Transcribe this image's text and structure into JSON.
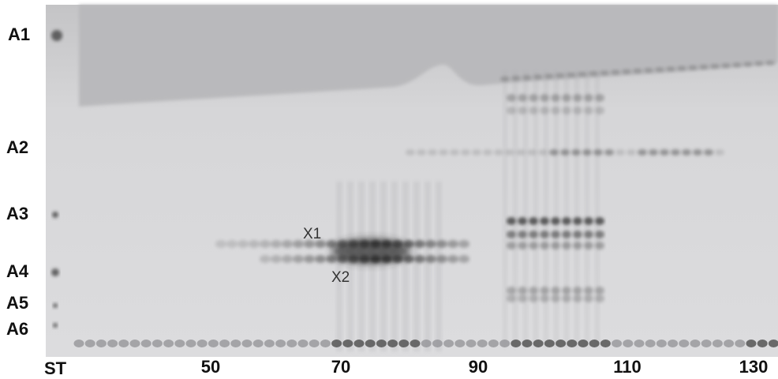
{
  "row_labels": [
    "A1",
    "A2",
    "A3",
    "A4",
    "A5",
    "A6"
  ],
  "lane_labels": [
    "ST",
    "50",
    "70",
    "90",
    "110",
    "130"
  ],
  "band_labels": [
    "X1",
    "X2"
  ]
}
